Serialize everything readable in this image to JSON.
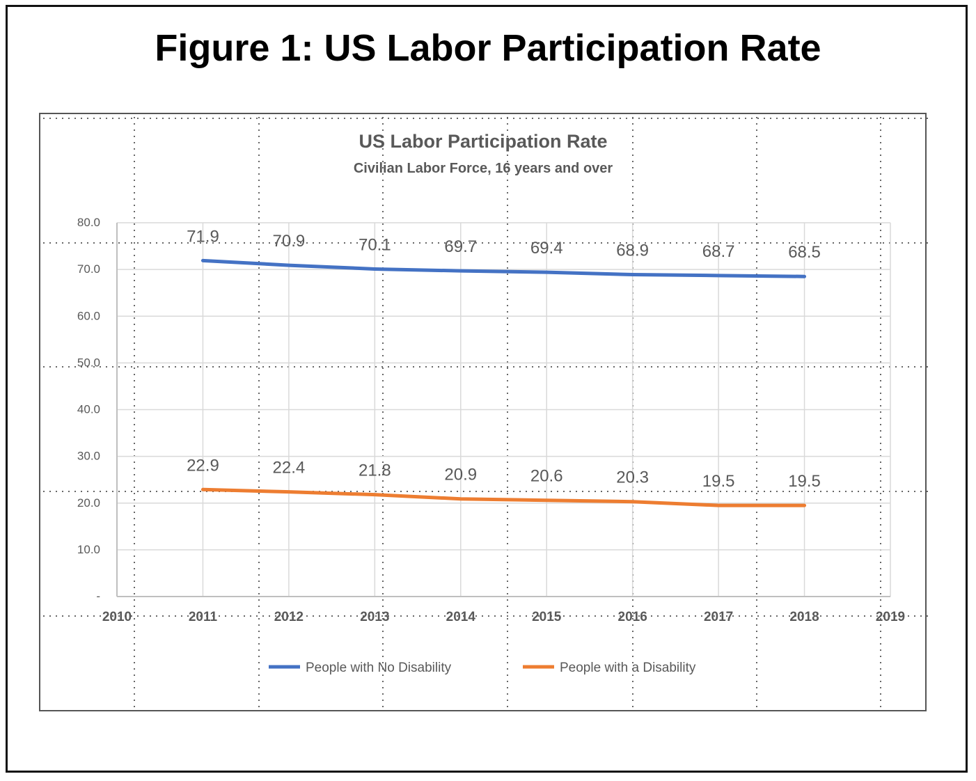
{
  "figure_title": "Figure 1:  US Labor Participation Rate",
  "colors": {
    "series_1": "#4472c4",
    "series_2": "#ed7d31",
    "gridline": "#d9d9d9",
    "text": "#595959",
    "frame": "#111111"
  },
  "chart_data": {
    "type": "line",
    "title": "US Labor Participation Rate",
    "subtitle": "Civilian Labor Force, 16 years and over",
    "x": [
      2011,
      2012,
      2013,
      2014,
      2015,
      2016,
      2017,
      2018
    ],
    "xlim": [
      2010,
      2019
    ],
    "x_ticks": [
      "2010",
      "2011",
      "2012",
      "2013",
      "2014",
      "2015",
      "2016",
      "2017",
      "2018",
      "2019"
    ],
    "ylim": [
      0,
      80
    ],
    "y_ticks": [
      "-",
      "10.0",
      "20.0",
      "30.0",
      "40.0",
      "50.0",
      "60.0",
      "70.0",
      "80.0"
    ],
    "grid": true,
    "legend_position": "bottom",
    "series": [
      {
        "name": "People with No Disability",
        "values": [
          71.9,
          70.9,
          70.1,
          69.7,
          69.4,
          68.9,
          68.7,
          68.5
        ],
        "labels": [
          "71.9",
          "70.9",
          "70.1",
          "69.7",
          "69.4",
          "68.9",
          "68.7",
          "68.5"
        ],
        "color": "#4472c4"
      },
      {
        "name": "People with a Disability",
        "values": [
          22.9,
          22.4,
          21.8,
          20.9,
          20.6,
          20.3,
          19.5,
          19.5
        ],
        "labels": [
          "22.9",
          "22.4",
          "21.8",
          "20.9",
          "20.6",
          "20.3",
          "19.5",
          "19.5"
        ],
        "color": "#ed7d31"
      }
    ]
  }
}
